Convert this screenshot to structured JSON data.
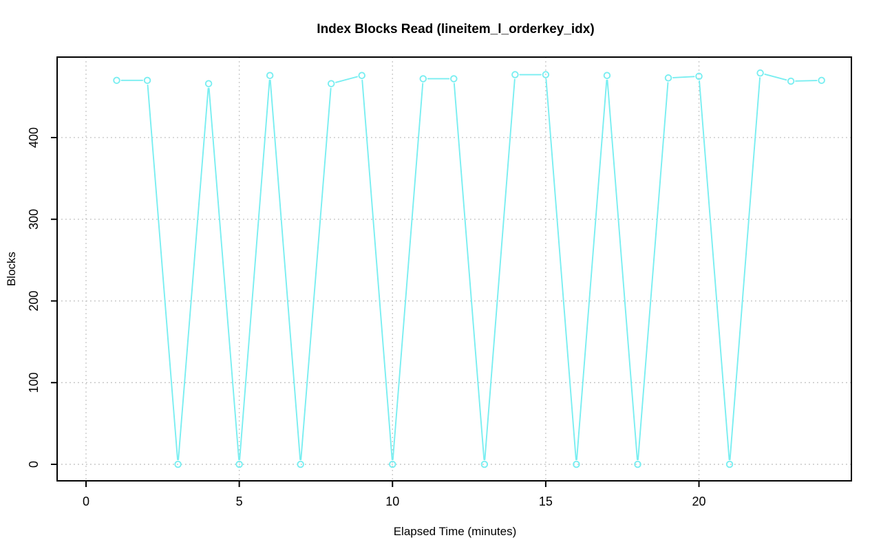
{
  "figure": {
    "title": "Index Blocks Read (lineitem_l_orderkey_idx)",
    "xlabel": "Elapsed Time (minutes)",
    "ylabel": "Blocks"
  },
  "chart_data": {
    "type": "line",
    "title": "Index Blocks Read (lineitem_l_orderkey_idx)",
    "xlabel": "Elapsed Time (minutes)",
    "ylabel": "Blocks",
    "series": [
      {
        "name": "index blocks read",
        "x": [
          1,
          2,
          3,
          4,
          5,
          6,
          7,
          8,
          9,
          10,
          11,
          12,
          13,
          14,
          15,
          16,
          17,
          18,
          19,
          20,
          21,
          22,
          23,
          24
        ],
        "values": [
          470,
          470,
          0,
          466,
          0,
          476,
          0,
          466,
          476,
          0,
          472,
          472,
          0,
          477,
          477,
          0,
          476,
          0,
          473,
          475,
          0,
          479,
          469,
          470
        ]
      }
    ],
    "x_ticks": [
      0,
      5,
      10,
      15,
      20
    ],
    "y_ticks": [
      0,
      100,
      200,
      300,
      400
    ],
    "xlim": [
      -0.943,
      24.974
    ],
    "ylim": [
      -20.2,
      498.5
    ],
    "grid": "dotted",
    "legend": "none",
    "marker": "open-circle",
    "line_color": "#00FFFF",
    "line_color_rendered": "#79EEF1",
    "grid_color": "#c2c2c2",
    "box_color": "#000000",
    "background_color": "#ffffff"
  }
}
